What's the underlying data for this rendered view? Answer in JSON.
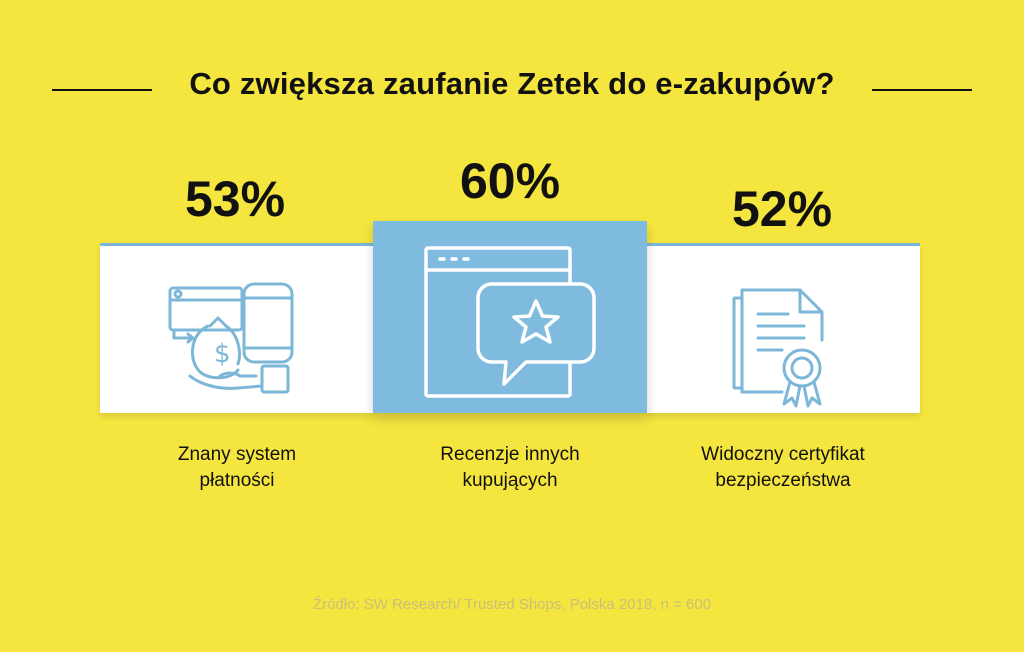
{
  "title": "Co zwiększa zaufanie Zetek do e-zakupów?",
  "chart_data": {
    "type": "bar",
    "categories": [
      "Znany system płatności",
      "Recenzje innych kupujących",
      "Widoczny certyfikat bezpieczeństwa"
    ],
    "values": [
      53,
      60,
      52
    ],
    "value_labels": [
      "53%",
      "60%",
      "52%"
    ],
    "unit": "%",
    "title": "Co zwiększa zaufanie Zetek do e-zakupów?",
    "highlighted_category": "Recenzje innych kupujących"
  },
  "items": [
    {
      "percent": "53%",
      "line1": "Znany system",
      "line2": "płatności",
      "icon": "payment-system-icon"
    },
    {
      "percent": "60%",
      "line1": "Recenzje innych",
      "line2": "kupujących",
      "icon": "review-star-icon"
    },
    {
      "percent": "52%",
      "line1": "Widoczny certyfikat",
      "line2": "bezpieczeństwa",
      "icon": "certificate-icon"
    }
  ],
  "source": "Źródło: SW Research/ Trusted Shops, Polska 2018, n = 600",
  "colors": {
    "background": "#f5e53f",
    "panel": "#ffffff",
    "highlight_panel": "#7fbadf",
    "icon_stroke": "#7cb7d8",
    "text": "#111111",
    "source_text": "#c9c07a"
  }
}
